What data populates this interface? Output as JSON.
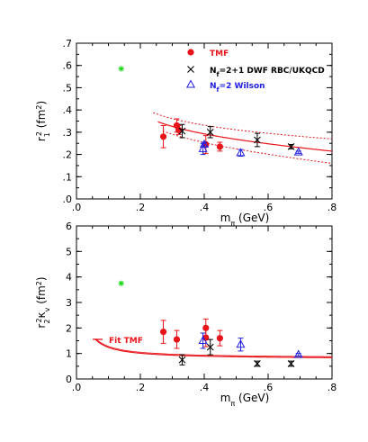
{
  "colors": {
    "red": "#e8141a",
    "black": "#000000",
    "blue": "#2020e0",
    "green": "#22dd22"
  },
  "chart_data": [
    {
      "type": "scatter",
      "xlim": [
        0,
        0.8
      ],
      "ylim": [
        0,
        0.7
      ],
      "xticks": [
        {
          "v": 0,
          "t": ".0"
        },
        {
          "v": 0.2,
          "t": ".2"
        },
        {
          "v": 0.4,
          "t": ".4"
        },
        {
          "v": 0.6,
          "t": ".6"
        },
        {
          "v": 0.8,
          "t": ".8"
        }
      ],
      "yticks": [
        {
          "v": 0,
          "t": ".0"
        },
        {
          "v": 0.1,
          "t": ".1"
        },
        {
          "v": 0.2,
          "t": ".2"
        },
        {
          "v": 0.3,
          "t": ".3"
        },
        {
          "v": 0.4,
          "t": ".4"
        },
        {
          "v": 0.5,
          "t": ".5"
        },
        {
          "v": 0.6,
          "t": ".6"
        },
        {
          "v": 0.7,
          "t": ".7"
        }
      ],
      "xlabel": {
        "base": "m",
        "sub": "π",
        "rest": " (GeV)"
      },
      "ylabel": {
        "base": "r",
        "sub": "1",
        "sup": "2",
        "rest": " (fm",
        "rest_sup": "2",
        "rest_end": ")"
      },
      "legend": [
        {
          "marker": "red-circle",
          "label": "TMF",
          "color": "red"
        },
        {
          "marker": "black-cross",
          "label_parts": [
            "N",
            "f",
            "=2+1 DWF RBC/UKQCD"
          ],
          "color": "black"
        },
        {
          "marker": "blue-triangle",
          "label_parts": [
            "N",
            "f",
            "=2 Wilson"
          ],
          "color": "blue"
        }
      ],
      "series": [
        {
          "name": "TMF",
          "marker": "circle",
          "color": "red",
          "points": [
            [
              0.272,
              0.28,
              0.05
            ],
            [
              0.314,
              0.33,
              0.03
            ],
            [
              0.32,
              0.31,
              0.02
            ],
            [
              0.405,
              0.245,
              0.04
            ],
            [
              0.449,
              0.235,
              0.02
            ]
          ]
        },
        {
          "name": "Nf=2+1 DWF RBC/UKQCD",
          "marker": "cross",
          "color": "black",
          "points": [
            [
              0.331,
              0.305,
              0.03
            ],
            [
              0.419,
              0.3,
              0.025
            ],
            [
              0.566,
              0.265,
              0.03
            ],
            [
              0.672,
              0.235,
              0.01
            ]
          ]
        },
        {
          "name": "Nf=2 Wilson",
          "marker": "triangle",
          "color": "blue",
          "points": [
            [
              0.396,
              0.225,
              0.025
            ],
            [
              0.4,
              0.245,
              0.01
            ],
            [
              0.514,
              0.207,
              0.015
            ],
            [
              0.695,
              0.21,
              0.005
            ]
          ]
        },
        {
          "name": "physical",
          "marker": "star",
          "color": "green",
          "points": [
            [
              0.14,
              0.585,
              0
            ]
          ]
        }
      ],
      "fit": {
        "kind": "r1",
        "a": 0.027,
        "b": 0.0,
        "band": 0.04,
        "from": 0.255,
        "to": 0.8
      }
    },
    {
      "type": "scatter",
      "xlim": [
        0,
        0.8
      ],
      "ylim": [
        0,
        6
      ],
      "xticks": [
        {
          "v": 0,
          "t": ".0"
        },
        {
          "v": 0.2,
          "t": ".2"
        },
        {
          "v": 0.4,
          "t": ".4"
        },
        {
          "v": 0.6,
          "t": ".6"
        },
        {
          "v": 0.8,
          "t": ".8"
        }
      ],
      "yticks": [
        {
          "v": 0,
          "t": "0"
        },
        {
          "v": 1,
          "t": "1"
        },
        {
          "v": 2,
          "t": "2"
        },
        {
          "v": 3,
          "t": "3"
        },
        {
          "v": 4,
          "t": "4"
        },
        {
          "v": 5,
          "t": "5"
        },
        {
          "v": 6,
          "t": "6"
        }
      ],
      "xlabel": {
        "base": "m",
        "sub": "π",
        "rest": " (GeV)"
      },
      "ylabel": {
        "base": "r",
        "sub": "2",
        "sup": "2",
        "mid": "κ",
        "mid_sub": "v",
        "rest": " (fm",
        "rest_sup": "2",
        "rest_end": ")"
      },
      "legend": [
        {
          "marker": "red-line",
          "label": "Fit TMF",
          "color": "red"
        }
      ],
      "series": [
        {
          "name": "TMF",
          "marker": "circle",
          "color": "red",
          "points": [
            [
              0.272,
              1.85,
              0.45
            ],
            [
              0.314,
              1.55,
              0.35
            ],
            [
              0.405,
              2.0,
              0.35
            ],
            [
              0.405,
              1.62,
              0.35
            ],
            [
              0.449,
              1.6,
              0.3
            ]
          ]
        },
        {
          "name": "Nf=2+1 DWF RBC/UKQCD",
          "marker": "cross",
          "color": "black",
          "points": [
            [
              0.331,
              0.75,
              0.2
            ],
            [
              0.419,
              1.25,
              0.3
            ],
            [
              0.566,
              0.6,
              0.1
            ],
            [
              0.672,
              0.6,
              0.1
            ]
          ]
        },
        {
          "name": "Nf=2 Wilson",
          "marker": "triangle",
          "color": "blue",
          "points": [
            [
              0.396,
              1.5,
              0.3
            ],
            [
              0.514,
              1.35,
              0.25
            ],
            [
              0.695,
              0.95,
              0.05
            ]
          ]
        },
        {
          "name": "physical",
          "marker": "star",
          "color": "green",
          "points": [
            [
              0.14,
              3.75,
              0
            ]
          ]
        }
      ],
      "fit": {
        "kind": "r2",
        "from": 0.06,
        "to": 0.8
      }
    }
  ]
}
